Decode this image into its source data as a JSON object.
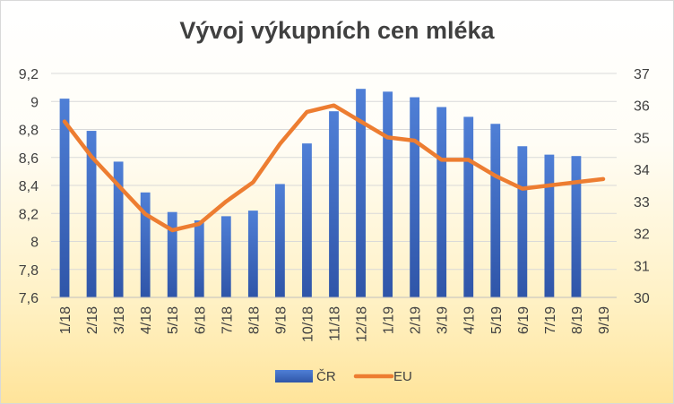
{
  "chart_data": {
    "type": "bar+line",
    "title": "Vývoj výkupních cen mléka",
    "categories": [
      "1/18",
      "2/18",
      "3/18",
      "4/18",
      "5/18",
      "6/18",
      "7/18",
      "8/18",
      "9/18",
      "10/18",
      "11/18",
      "12/18",
      "1/19",
      "2/19",
      "3/19",
      "4/19",
      "5/19",
      "6/19",
      "7/19",
      "8/19",
      "9/19"
    ],
    "series": [
      {
        "name": "ČR",
        "type": "bar",
        "axis": "left",
        "color": "#4472c4",
        "values": [
          9.02,
          8.79,
          8.57,
          8.35,
          8.21,
          8.15,
          8.18,
          8.22,
          8.41,
          8.7,
          8.93,
          9.09,
          9.07,
          9.03,
          8.96,
          8.89,
          8.84,
          8.68,
          8.62,
          8.61,
          null
        ]
      },
      {
        "name": "EU",
        "type": "line",
        "axis": "right",
        "color": "#ed7d31",
        "values": [
          35.5,
          34.4,
          33.5,
          32.6,
          32.1,
          32.3,
          33.0,
          33.6,
          34.8,
          35.8,
          36.0,
          35.5,
          35.0,
          34.9,
          34.3,
          34.3,
          33.8,
          33.4,
          33.5,
          33.6,
          33.7
        ]
      }
    ],
    "y_left": {
      "min": 7.6,
      "max": 9.2,
      "step": 0.2,
      "ticks": [
        "7,6",
        "7,8",
        "8",
        "8,2",
        "8,4",
        "8,6",
        "8,8",
        "9",
        "9,2"
      ]
    },
    "y_right": {
      "min": 30,
      "max": 37,
      "step": 1,
      "ticks": [
        "30",
        "31",
        "32",
        "33",
        "34",
        "35",
        "36",
        "37"
      ]
    },
    "grid": true,
    "legend": "bottom"
  }
}
